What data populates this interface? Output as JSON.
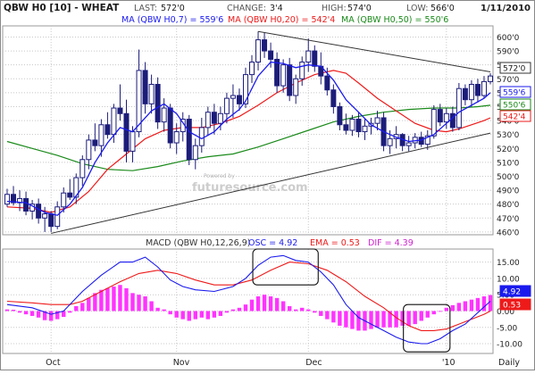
{
  "header": {
    "symbol": "QBW H0 [10] - WHEAT",
    "last_label": "LAST:",
    "last": "572'0",
    "change_label": "CHANGE:",
    "change": "3'4",
    "high_label": "HIGH:",
    "high": "574'0",
    "low_label": "LOW:",
    "low": "566'0",
    "date": "1/11/2010"
  },
  "legend": {
    "ma7": "MA (QBW H0,7) = 559'6",
    "ma20": "MA (QBW H0,20) = 542'4",
    "ma50": "MA (QBW H0,50) = 550'6"
  },
  "price_tags": {
    "last": "572'0",
    "ma7": "559'6",
    "ma50": "550'6",
    "ma20": "542'4"
  },
  "macd_header": {
    "title": "MACD (QBW H0,12,26,9)",
    "osc": "OSC = 4.92",
    "ema": "EMA = 0.53",
    "dif": "DIF = 4.39"
  },
  "macd_tags": {
    "osc": "4.92",
    "ema": "0.53"
  },
  "watermark": "futuresource.com",
  "watermark_small": "Powered by",
  "colors": {
    "ma7": "#1a1aee",
    "ma20": "#ee1a1a",
    "ma50": "#1a8a1a",
    "candle": "#1c1c7a",
    "hist": "#ff33ff",
    "grid": "#c8c8c8"
  },
  "chart_data": {
    "type": "candlestick",
    "price_axis": {
      "ticks": [
        "460'0",
        "470'0",
        "480'0",
        "490'0",
        "500'0",
        "510'0",
        "520'0",
        "530'0",
        "540'0",
        "550'0",
        "560'0",
        "570'0",
        "580'0",
        "590'0",
        "600'0"
      ],
      "ylim": [
        458,
        608
      ]
    },
    "x_labels": [
      "Oct",
      "Nov",
      "Dec",
      "'10",
      "Daily"
    ],
    "price_series": [
      [
        0,
        480,
        491,
        478,
        487
      ],
      [
        1,
        487,
        493,
        479,
        481
      ],
      [
        2,
        481,
        490,
        475,
        484
      ],
      [
        3,
        484,
        489,
        472,
        475
      ],
      [
        4,
        475,
        483,
        469,
        480
      ],
      [
        5,
        480,
        484,
        466,
        470
      ],
      [
        6,
        470,
        478,
        460,
        473
      ],
      [
        7,
        473,
        475,
        460,
        464
      ],
      [
        8,
        464,
        482,
        462,
        478
      ],
      [
        9,
        478,
        492,
        474,
        488
      ],
      [
        10,
        488,
        498,
        483,
        485
      ],
      [
        11,
        485,
        502,
        480,
        499
      ],
      [
        12,
        499,
        515,
        493,
        512
      ],
      [
        13,
        512,
        530,
        505,
        526
      ],
      [
        14,
        526,
        538,
        518,
        522
      ],
      [
        15,
        522,
        541,
        514,
        537
      ],
      [
        16,
        537,
        546,
        527,
        530
      ],
      [
        17,
        530,
        552,
        524,
        549
      ],
      [
        18,
        549,
        566,
        540,
        545
      ],
      [
        19,
        545,
        555,
        510,
        518
      ],
      [
        20,
        518,
        536,
        510,
        532
      ],
      [
        21,
        532,
        591,
        528,
        576
      ],
      [
        22,
        576,
        582,
        545,
        552
      ],
      [
        23,
        552,
        573,
        545,
        566
      ],
      [
        24,
        566,
        571,
        534,
        539
      ],
      [
        25,
        539,
        556,
        532,
        549
      ],
      [
        26,
        549,
        552,
        520,
        524
      ],
      [
        27,
        524,
        538,
        516,
        532
      ],
      [
        28,
        532,
        546,
        525,
        541
      ],
      [
        29,
        541,
        544,
        508,
        512
      ],
      [
        30,
        512,
        527,
        505,
        522
      ],
      [
        31,
        522,
        542,
        517,
        535
      ],
      [
        32,
        535,
        550,
        529,
        546
      ],
      [
        33,
        546,
        552,
        530,
        538
      ],
      [
        34,
        538,
        550,
        533,
        545
      ],
      [
        35,
        545,
        560,
        538,
        556
      ],
      [
        36,
        556,
        566,
        542,
        558
      ],
      [
        37,
        558,
        563,
        547,
        552
      ],
      [
        38,
        552,
        578,
        549,
        573
      ],
      [
        39,
        573,
        587,
        567,
        582
      ],
      [
        40,
        582,
        604,
        576,
        598
      ],
      [
        41,
        598,
        603,
        585,
        590
      ],
      [
        42,
        590,
        596,
        578,
        584
      ],
      [
        43,
        584,
        589,
        560,
        565
      ],
      [
        44,
        565,
        584,
        560,
        580
      ],
      [
        45,
        580,
        585,
        554,
        558
      ],
      [
        46,
        558,
        573,
        552,
        570
      ],
      [
        47,
        570,
        586,
        565,
        582
      ],
      [
        48,
        582,
        599,
        575,
        590
      ],
      [
        49,
        590,
        594,
        575,
        579
      ],
      [
        50,
        579,
        589,
        566,
        572
      ],
      [
        51,
        572,
        578,
        558,
        562
      ],
      [
        52,
        562,
        566,
        545,
        550
      ],
      [
        53,
        550,
        553,
        533,
        537
      ],
      [
        54,
        537,
        545,
        530,
        533
      ],
      [
        55,
        533,
        544,
        529,
        541
      ],
      [
        56,
        541,
        546,
        528,
        532
      ],
      [
        57,
        532,
        541,
        526,
        536
      ],
      [
        58,
        536,
        542,
        530,
        538
      ],
      [
        59,
        538,
        547,
        533,
        542
      ],
      [
        60,
        542,
        546,
        518,
        522
      ],
      [
        61,
        522,
        533,
        516,
        527
      ],
      [
        62,
        527,
        536,
        520,
        530
      ],
      [
        63,
        530,
        531,
        518,
        522
      ],
      [
        64,
        522,
        529,
        518,
        524
      ],
      [
        65,
        524,
        531,
        520,
        528
      ],
      [
        66,
        528,
        532,
        521,
        523
      ],
      [
        67,
        523,
        533,
        519,
        529
      ],
      [
        68,
        529,
        551,
        527,
        548
      ],
      [
        69,
        548,
        552,
        536,
        539
      ],
      [
        70,
        539,
        549,
        534,
        545
      ],
      [
        71,
        545,
        550,
        532,
        535
      ],
      [
        72,
        535,
        567,
        533,
        563
      ],
      [
        73,
        563,
        566,
        551,
        555
      ],
      [
        74,
        555,
        569,
        550,
        566
      ],
      [
        75,
        566,
        570,
        553,
        558
      ],
      [
        76,
        558,
        572,
        556,
        568
      ],
      [
        77,
        568,
        574,
        566,
        572
      ]
    ],
    "ma7_series": [
      [
        0,
        482
      ],
      [
        3,
        481
      ],
      [
        6,
        474
      ],
      [
        8,
        472
      ],
      [
        10,
        480
      ],
      [
        12,
        492
      ],
      [
        14,
        510
      ],
      [
        16,
        524
      ],
      [
        18,
        535
      ],
      [
        20,
        532
      ],
      [
        21,
        537
      ],
      [
        23,
        547
      ],
      [
        25,
        552
      ],
      [
        27,
        545
      ],
      [
        29,
        532
      ],
      [
        31,
        527
      ],
      [
        33,
        532
      ],
      [
        35,
        541
      ],
      [
        37,
        548
      ],
      [
        38,
        554
      ],
      [
        40,
        572
      ],
      [
        42,
        582
      ],
      [
        44,
        581
      ],
      [
        46,
        578
      ],
      [
        48,
        580
      ],
      [
        50,
        579
      ],
      [
        52,
        569
      ],
      [
        54,
        555
      ],
      [
        56,
        546
      ],
      [
        58,
        537
      ],
      [
        60,
        532
      ],
      [
        62,
        528
      ],
      [
        64,
        525
      ],
      [
        66,
        526
      ],
      [
        68,
        530
      ],
      [
        70,
        538
      ],
      [
        72,
        546
      ],
      [
        74,
        551
      ],
      [
        76,
        556
      ],
      [
        77,
        560
      ]
    ],
    "ma20_series": [
      [
        0,
        478
      ],
      [
        4,
        477
      ],
      [
        7,
        474
      ],
      [
        10,
        478
      ],
      [
        13,
        489
      ],
      [
        16,
        505
      ],
      [
        19,
        516
      ],
      [
        22,
        527
      ],
      [
        25,
        533
      ],
      [
        28,
        535
      ],
      [
        31,
        535
      ],
      [
        34,
        538
      ],
      [
        37,
        543
      ],
      [
        40,
        551
      ],
      [
        43,
        560
      ],
      [
        46,
        567
      ],
      [
        49,
        573
      ],
      [
        52,
        576
      ],
      [
        54,
        574
      ],
      [
        56,
        567
      ],
      [
        59,
        556
      ],
      [
        62,
        547
      ],
      [
        65,
        538
      ],
      [
        68,
        533
      ],
      [
        70,
        532
      ],
      [
        72,
        534
      ],
      [
        74,
        537
      ],
      [
        76,
        540
      ],
      [
        77,
        542
      ]
    ],
    "ma50_series": [
      [
        0,
        525
      ],
      [
        4,
        520
      ],
      [
        8,
        515
      ],
      [
        12,
        509
      ],
      [
        16,
        505
      ],
      [
        20,
        504
      ],
      [
        24,
        507
      ],
      [
        28,
        511
      ],
      [
        32,
        514
      ],
      [
        36,
        516
      ],
      [
        40,
        521
      ],
      [
        44,
        527
      ],
      [
        48,
        533
      ],
      [
        52,
        539
      ],
      [
        56,
        543
      ],
      [
        60,
        546
      ],
      [
        64,
        548
      ],
      [
        68,
        549
      ],
      [
        72,
        549
      ],
      [
        75,
        550
      ],
      [
        77,
        551
      ]
    ],
    "trendlines": [
      {
        "name": "upper",
        "points": [
          [
            40,
            604
          ],
          [
            77,
            575
          ]
        ]
      },
      {
        "name": "lower",
        "points": [
          [
            7,
            459
          ],
          [
            77,
            531
          ]
        ]
      }
    ],
    "macd_axis": {
      "ticks": [
        "-10.00",
        "-5.00",
        "0.00",
        "5.00",
        "10.00",
        "15.00"
      ],
      "ylim": [
        -13,
        19
      ]
    },
    "macd_line": [
      [
        0,
        2
      ],
      [
        4,
        1
      ],
      [
        7,
        -1
      ],
      [
        9,
        0
      ],
      [
        12,
        6
      ],
      [
        15,
        11
      ],
      [
        18,
        15
      ],
      [
        20,
        15
      ],
      [
        22,
        16.5
      ],
      [
        24,
        13.5
      ],
      [
        26,
        9.5
      ],
      [
        28,
        7.5
      ],
      [
        30,
        6.5
      ],
      [
        33,
        6
      ],
      [
        36,
        7.5
      ],
      [
        38,
        10
      ],
      [
        40,
        14
      ],
      [
        42,
        16.5
      ],
      [
        44,
        17
      ],
      [
        46,
        15.5
      ],
      [
        48,
        15
      ],
      [
        50,
        12
      ],
      [
        52,
        8
      ],
      [
        54,
        2
      ],
      [
        56,
        -2
      ],
      [
        58,
        -4
      ],
      [
        60,
        -6
      ],
      [
        62,
        -8
      ],
      [
        64,
        -9.5
      ],
      [
        66,
        -10
      ],
      [
        67,
        -10
      ],
      [
        69,
        -8.5
      ],
      [
        71,
        -6
      ],
      [
        73,
        -4
      ],
      [
        75,
        -0.5
      ],
      [
        77,
        3
      ]
    ],
    "signal_line": [
      [
        0,
        3
      ],
      [
        4,
        2.5
      ],
      [
        7,
        2
      ],
      [
        10,
        2
      ],
      [
        12,
        3
      ],
      [
        15,
        6
      ],
      [
        18,
        9
      ],
      [
        21,
        11.5
      ],
      [
        24,
        12.5
      ],
      [
        27,
        11.5
      ],
      [
        30,
        9.5
      ],
      [
        33,
        8
      ],
      [
        36,
        8
      ],
      [
        39,
        9.5
      ],
      [
        42,
        12.5
      ],
      [
        45,
        15
      ],
      [
        48,
        14.5
      ],
      [
        51,
        12.5
      ],
      [
        54,
        9
      ],
      [
        57,
        4.5
      ],
      [
        60,
        1
      ],
      [
        62,
        -2
      ],
      [
        64,
        -4.5
      ],
      [
        66,
        -6
      ],
      [
        68,
        -6
      ],
      [
        70,
        -5.5
      ],
      [
        72,
        -4
      ],
      [
        74,
        -2.5
      ],
      [
        76,
        -1
      ],
      [
        77,
        0
      ]
    ],
    "histogram": [
      [
        0,
        0.5
      ],
      [
        1,
        0.4
      ],
      [
        2,
        -0.5
      ],
      [
        3,
        -1
      ],
      [
        4,
        -1.5
      ],
      [
        5,
        -2
      ],
      [
        6,
        -2.8
      ],
      [
        7,
        -3
      ],
      [
        8,
        -2.5
      ],
      [
        9,
        -1.8
      ],
      [
        10,
        -0.5
      ],
      [
        11,
        1.5
      ],
      [
        12,
        2.5
      ],
      [
        13,
        4
      ],
      [
        14,
        5.5
      ],
      [
        15,
        6.5
      ],
      [
        16,
        7
      ],
      [
        17,
        7.5
      ],
      [
        18,
        8
      ],
      [
        19,
        7
      ],
      [
        20,
        5.5
      ],
      [
        21,
        5
      ],
      [
        22,
        4.5
      ],
      [
        23,
        3
      ],
      [
        24,
        1
      ],
      [
        25,
        0.5
      ],
      [
        26,
        -1
      ],
      [
        27,
        -2
      ],
      [
        28,
        -2.5
      ],
      [
        29,
        -3
      ],
      [
        30,
        -2.5
      ],
      [
        31,
        -2
      ],
      [
        32,
        -2.5
      ],
      [
        33,
        -2
      ],
      [
        34,
        -1.5
      ],
      [
        35,
        -0.5
      ],
      [
        36,
        0.5
      ],
      [
        37,
        1
      ],
      [
        38,
        2
      ],
      [
        39,
        3.5
      ],
      [
        40,
        4.5
      ],
      [
        41,
        5
      ],
      [
        42,
        4.5
      ],
      [
        43,
        4
      ],
      [
        44,
        3
      ],
      [
        45,
        1.5
      ],
      [
        46,
        0.5
      ],
      [
        47,
        1
      ],
      [
        48,
        0.5
      ],
      [
        49,
        -0.5
      ],
      [
        50,
        -1.5
      ],
      [
        51,
        -2.5
      ],
      [
        52,
        -3.5
      ],
      [
        53,
        -4.5
      ],
      [
        54,
        -5
      ],
      [
        55,
        -5.5
      ],
      [
        56,
        -6
      ],
      [
        57,
        -6
      ],
      [
        58,
        -5.5
      ],
      [
        59,
        -5
      ],
      [
        60,
        -5
      ],
      [
        61,
        -5
      ],
      [
        62,
        -5
      ],
      [
        63,
        -4.5
      ],
      [
        64,
        -4.5
      ],
      [
        65,
        -4
      ],
      [
        66,
        -3
      ],
      [
        67,
        -2
      ],
      [
        68,
        -1
      ],
      [
        69,
        0
      ],
      [
        70,
        1
      ],
      [
        71,
        1.8
      ],
      [
        72,
        2.5
      ],
      [
        73,
        3
      ],
      [
        74,
        3.5
      ],
      [
        75,
        4
      ],
      [
        76,
        4.5
      ],
      [
        77,
        4.9
      ]
    ],
    "highlight_boxes": [
      {
        "name": "box-macd-peak",
        "x": [
          40,
          49
        ],
        "y": [
          8,
          19
        ]
      },
      {
        "name": "box-macd-trough",
        "x": [
          64,
          70
        ],
        "y": [
          -12.5,
          2
        ]
      }
    ]
  }
}
